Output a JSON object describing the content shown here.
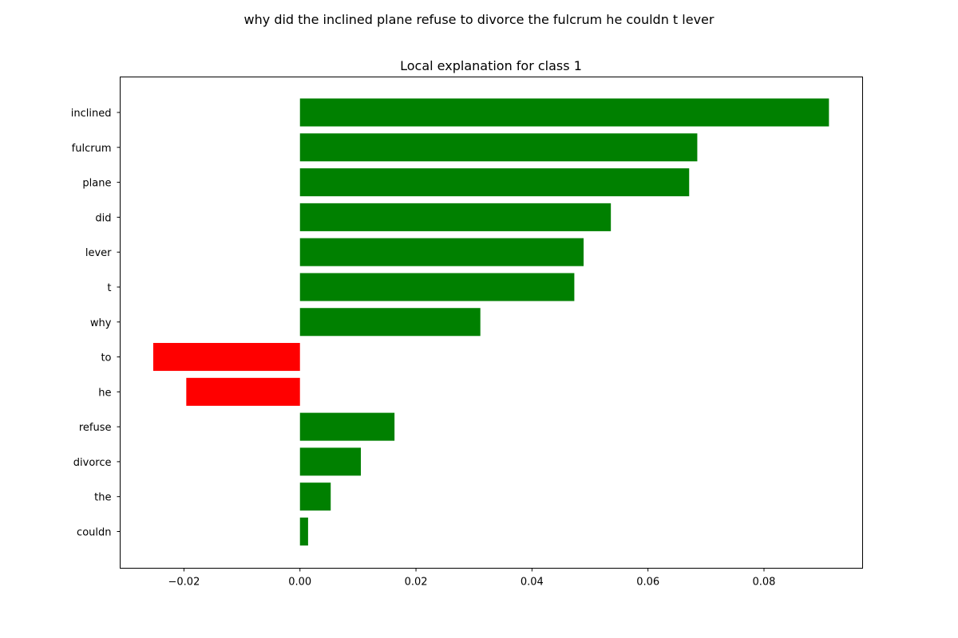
{
  "figure_title": "why did the inclined plane refuse to divorce the fulcrum he couldn t lever",
  "chart_data": {
    "type": "bar",
    "orientation": "horizontal",
    "title": "Local explanation for class 1",
    "xlabel": "",
    "ylabel": "",
    "categories": [
      "inclined",
      "fulcrum",
      "plane",
      "did",
      "lever",
      "t",
      "why",
      "to",
      "he",
      "refuse",
      "divorce",
      "the",
      "couldn"
    ],
    "values": [
      0.0912,
      0.0685,
      0.0671,
      0.0536,
      0.0489,
      0.0473,
      0.0311,
      -0.0253,
      -0.0196,
      0.0163,
      0.0105,
      0.0053,
      0.0014
    ],
    "xlim": [
      -0.031,
      0.097
    ],
    "xticks": [
      -0.02,
      0.0,
      0.02,
      0.04,
      0.06,
      0.08
    ],
    "xtick_labels": [
      "−0.02",
      "0.00",
      "0.02",
      "0.04",
      "0.06",
      "0.08"
    ],
    "positive_color": "#008000",
    "negative_color": "#ff0000",
    "grid": false,
    "legend": "none"
  }
}
